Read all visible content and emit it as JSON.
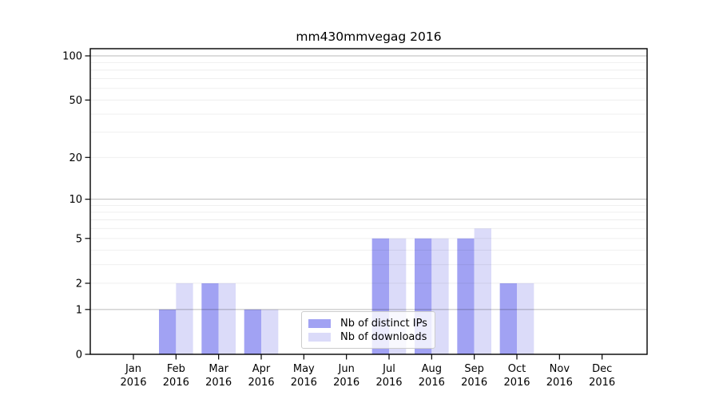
{
  "title": "mm430mmvegag 2016",
  "chart_data": {
    "type": "bar",
    "title": "mm430mmvegag 2016",
    "categories": [
      "Jan",
      "Feb",
      "Mar",
      "Apr",
      "May",
      "Jun",
      "Jul",
      "Aug",
      "Sep",
      "Oct",
      "Nov",
      "Dec"
    ],
    "category_year": "2016",
    "series": [
      {
        "name": "Nb of distinct IPs",
        "color": "#a1a2f3",
        "values": [
          0,
          1,
          2,
          1,
          0,
          0,
          5,
          5,
          5,
          2,
          0,
          0
        ]
      },
      {
        "name": "Nb of downloads",
        "color": "#dbdbf9",
        "values": [
          0,
          2,
          2,
          1,
          0,
          0,
          5,
          5,
          6,
          2,
          0,
          0
        ]
      }
    ],
    "xlabel": "",
    "ylabel": "",
    "yscale": "log1p",
    "ylim": [
      0,
      112
    ],
    "ytick_values": [
      0,
      1,
      2,
      5,
      10,
      20,
      50,
      100
    ],
    "ytick_labels": [
      "0",
      "1",
      "2",
      "5",
      "10",
      "20",
      "50",
      "100"
    ],
    "minor_gridlines": [
      2,
      3,
      4,
      5,
      6,
      7,
      8,
      9,
      20,
      30,
      40,
      50,
      60,
      70,
      80,
      90
    ],
    "major_gridlines": [
      1,
      10,
      100
    ],
    "grid": true,
    "legend_position": "lower center",
    "bar_group_width_months": 0.8
  },
  "colors": {
    "bar_distinct_ips": "#a1a2f3",
    "bar_downloads": "#dbdbf9",
    "spine": "#000000",
    "gridline_major": "rgba(0,0,0,0.27)",
    "gridline_minor": "rgba(0,0,0,0.07)",
    "legend_border": "#cccccc"
  }
}
